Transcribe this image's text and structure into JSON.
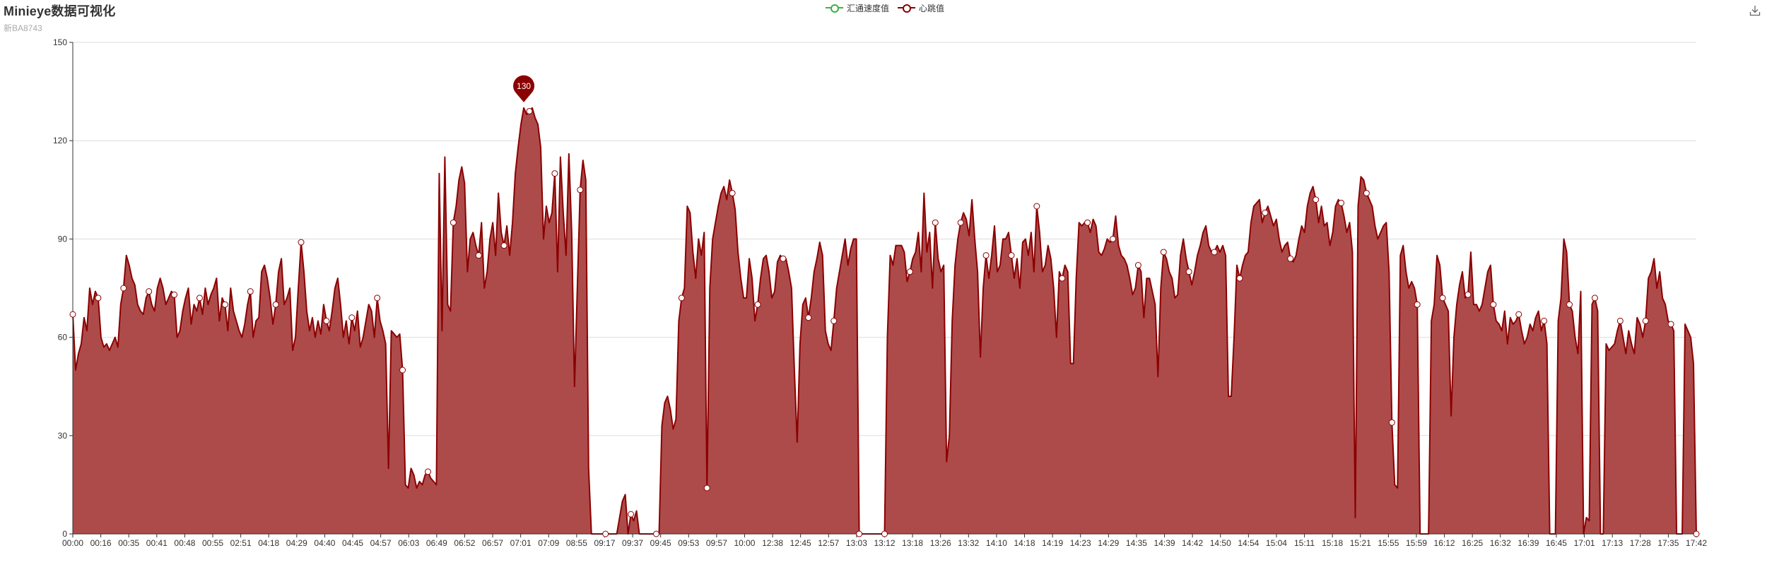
{
  "title": "Minieye数据可视化",
  "subtitle": "新BA8743",
  "legend": [
    {
      "name": "汇通速度值",
      "color": "#3cb043"
    },
    {
      "name": "心跳值",
      "color": "#8b0000"
    }
  ],
  "toolbox": {
    "icon": "download-icon"
  },
  "colors": {
    "heart": "#8b0000",
    "heart_fill": "#ad4b4b",
    "grid": "#dddddd",
    "axis": "#333333"
  },
  "chart_data": {
    "type": "area",
    "title": "Minieye数据可视化",
    "subtitle": "新BA8743",
    "ylim": [
      0,
      150
    ],
    "yticks": [
      0,
      30,
      60,
      90,
      120,
      150
    ],
    "grid": true,
    "legend_position": "top-center",
    "x_labels": [
      "00:00",
      "00:16",
      "00:35",
      "00:41",
      "00:48",
      "00:55",
      "02:51",
      "04:18",
      "04:29",
      "04:40",
      "04:45",
      "04:57",
      "06:03",
      "06:49",
      "06:52",
      "06:57",
      "07:01",
      "07:09",
      "08:55",
      "09:17",
      "09:37",
      "09:45",
      "09:53",
      "09:57",
      "10:00",
      "12:38",
      "12:45",
      "12:57",
      "13:03",
      "13:12",
      "13:18",
      "13:26",
      "13:32",
      "14:10",
      "14:18",
      "14:19",
      "14:23",
      "14:29",
      "14:35",
      "14:39",
      "14:42",
      "14:50",
      "14:54",
      "15:04",
      "15:11",
      "15:18",
      "15:21",
      "15:55",
      "15:59",
      "16:12",
      "16:25",
      "16:32",
      "16:39",
      "16:45",
      "17:01",
      "17:13",
      "17:28",
      "17:35",
      "17:42"
    ],
    "max_marker": {
      "value": 130,
      "label": "130"
    },
    "series": [
      {
        "name": "心跳值",
        "color": "#8b0000",
        "values": [
          67,
          50,
          55,
          58,
          66,
          62,
          75,
          70,
          74,
          72,
          60,
          57,
          58,
          56,
          58,
          60,
          57,
          70,
          75,
          85,
          82,
          78,
          76,
          70,
          68,
          67,
          72,
          74,
          70,
          68,
          75,
          78,
          75,
          70,
          72,
          74,
          73,
          60,
          62,
          68,
          72,
          75,
          64,
          70,
          68,
          72,
          67,
          75,
          70,
          73,
          75,
          78,
          65,
          72,
          70,
          62,
          75,
          68,
          65,
          62,
          60,
          64,
          70,
          74,
          60,
          65,
          66,
          80,
          82,
          78,
          72,
          64,
          70,
          80,
          84,
          70,
          72,
          75,
          56,
          60,
          75,
          89,
          80,
          68,
          62,
          66,
          60,
          65,
          61,
          70,
          65,
          62,
          68,
          75,
          78,
          70,
          60,
          65,
          58,
          66,
          62,
          68,
          57,
          60,
          65,
          70,
          68,
          60,
          72,
          65,
          62,
          58,
          20,
          62,
          61,
          60,
          61,
          50,
          15,
          14,
          20,
          18,
          14,
          16,
          15,
          18,
          19,
          17,
          16,
          15,
          110,
          62,
          115,
          70,
          68,
          95,
          100,
          108,
          112,
          107,
          80,
          90,
          92,
          88,
          85,
          95,
          75,
          80,
          90,
          95,
          85,
          104,
          92,
          88,
          94,
          85,
          95,
          110,
          118,
          125,
          130,
          128,
          129,
          130,
          127,
          125,
          118,
          90,
          100,
          95,
          98,
          110,
          80,
          115,
          98,
          85,
          116,
          92,
          45,
          75,
          105,
          114,
          108,
          20,
          0,
          0,
          0,
          0,
          0,
          0,
          0,
          0,
          0,
          0,
          5,
          10,
          12,
          0,
          6,
          4,
          7,
          0,
          0,
          0,
          0,
          0,
          0,
          0,
          0,
          33,
          40,
          42,
          38,
          32,
          35,
          65,
          72,
          75,
          100,
          98,
          86,
          78,
          90,
          85,
          92,
          14,
          75,
          90,
          95,
          100,
          104,
          106,
          102,
          108,
          104,
          99,
          86,
          78,
          72,
          72,
          84,
          78,
          65,
          70,
          78,
          84,
          85,
          80,
          72,
          74,
          83,
          85,
          84,
          84,
          80,
          75,
          50,
          28,
          58,
          70,
          72,
          66,
          72,
          80,
          84,
          89,
          85,
          62,
          58,
          56,
          65,
          75,
          80,
          85,
          90,
          82,
          87,
          90,
          90,
          0,
          0,
          0,
          0,
          0,
          0,
          0,
          0,
          0,
          0,
          60,
          85,
          82,
          88,
          88,
          88,
          86,
          77,
          80,
          84,
          86,
          92,
          80,
          104,
          86,
          92,
          75,
          95,
          84,
          80,
          82,
          22,
          30,
          65,
          82,
          90,
          95,
          98,
          96,
          91,
          102,
          90,
          80,
          54,
          75,
          85,
          78,
          85,
          94,
          80,
          82,
          90,
          90,
          92,
          85,
          78,
          84,
          75,
          89,
          90,
          85,
          92,
          80,
          100,
          92,
          80,
          82,
          88,
          84,
          75,
          60,
          80,
          78,
          82,
          80,
          52,
          52,
          78,
          95,
          94,
          95,
          95,
          92,
          96,
          94,
          86,
          85,
          87,
          90,
          89,
          90,
          97,
          88,
          85,
          84,
          82,
          78,
          73,
          75,
          82,
          80,
          66,
          78,
          78,
          74,
          70,
          48,
          75,
          86,
          84,
          80,
          78,
          72,
          73,
          85,
          90,
          84,
          80,
          76,
          80,
          85,
          88,
          92,
          94,
          88,
          86,
          86,
          88,
          86,
          88,
          85,
          42,
          42,
          60,
          82,
          78,
          82,
          85,
          86,
          95,
          100,
          101,
          102,
          95,
          98,
          100,
          97,
          94,
          96,
          90,
          86,
          88,
          89,
          84,
          83,
          85,
          90,
          94,
          92,
          100,
          104,
          106,
          102,
          95,
          100,
          94,
          95,
          88,
          92,
          100,
          102,
          101,
          97,
          92,
          95,
          86,
          5,
          100,
          109,
          108,
          104,
          102,
          100,
          94,
          90,
          92,
          94,
          95,
          80,
          34,
          15,
          14,
          85,
          88,
          80,
          75,
          77,
          75,
          70,
          0,
          0,
          0,
          0,
          65,
          70,
          85,
          82,
          72,
          70,
          68,
          36,
          60,
          70,
          76,
          80,
          72,
          73,
          86,
          70,
          70,
          68,
          70,
          75,
          80,
          82,
          70,
          65,
          64,
          62,
          68,
          58,
          66,
          64,
          65,
          67,
          62,
          58,
          60,
          64,
          62,
          66,
          68,
          62,
          65,
          58,
          0,
          0,
          0,
          65,
          72,
          90,
          86,
          70,
          68,
          60,
          55,
          74,
          0,
          5,
          4,
          70,
          72,
          68,
          0,
          0,
          58,
          56,
          57,
          58,
          62,
          65,
          60,
          55,
          62,
          58,
          55,
          66,
          64,
          60,
          65,
          78,
          80,
          84,
          75,
          80,
          72,
          70,
          65,
          64,
          62,
          0,
          0,
          0,
          64,
          62,
          60,
          52,
          0
        ]
      }
    ]
  }
}
